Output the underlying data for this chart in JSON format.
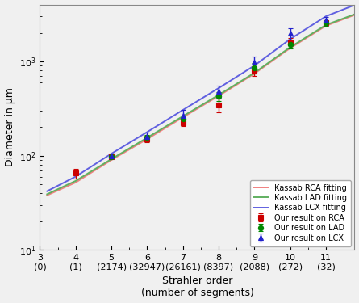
{
  "title": "",
  "xlabel": "Strahler order\n(number of segments)",
  "ylabel": "Diameter in μm",
  "xlim": [
    3.2,
    11.8
  ],
  "ylim": [
    10,
    4000
  ],
  "xtick_positions": [
    3,
    4,
    5,
    6,
    7,
    8,
    9,
    10,
    11
  ],
  "xtick_labels_top": [
    "3",
    "4",
    "5",
    "6",
    "7",
    "8",
    "9",
    "10",
    "11"
  ],
  "xtick_labels_bot": [
    "(0)",
    "(1)",
    "(2174)",
    "(32947)",
    "(26161)",
    "(8397)",
    "(2088)",
    "(272)",
    "(32)"
  ],
  "kassab_x": [
    3.2,
    4,
    5,
    6,
    7,
    8,
    9,
    10,
    11,
    11.8
  ],
  "kassab_rca_y": [
    38,
    52,
    90,
    150,
    255,
    430,
    740,
    1380,
    2380,
    3100
  ],
  "kassab_lad_y": [
    39,
    54,
    92,
    155,
    262,
    440,
    755,
    1410,
    2430,
    3150
  ],
  "kassab_lcx_y": [
    42,
    60,
    105,
    178,
    305,
    520,
    900,
    1720,
    3000,
    3950
  ],
  "rca_x": [
    4,
    5,
    6,
    7,
    8,
    9,
    10,
    11
  ],
  "rca_y": [
    65,
    97,
    150,
    225,
    345,
    790,
    1580,
    2550
  ],
  "rca_yerr_lo": [
    8,
    4,
    12,
    18,
    55,
    90,
    180,
    180
  ],
  "rca_yerr_hi": [
    8,
    4,
    12,
    18,
    55,
    90,
    180,
    180
  ],
  "lad_x": [
    5,
    6,
    7,
    8,
    9,
    10,
    11
  ],
  "lad_y": [
    97,
    155,
    248,
    425,
    855,
    1520,
    2560
  ],
  "lad_yerr_lo": [
    4,
    12,
    18,
    45,
    110,
    140,
    180
  ],
  "lad_yerr_hi": [
    4,
    12,
    18,
    45,
    110,
    140,
    180
  ],
  "lcx_x": [
    5,
    6,
    7,
    8,
    9,
    10,
    11
  ],
  "lcx_y": [
    100,
    160,
    268,
    480,
    980,
    1980,
    2720
  ],
  "lcx_yerr_lo": [
    6,
    15,
    35,
    70,
    140,
    280,
    230
  ],
  "lcx_yerr_hi": [
    6,
    15,
    35,
    70,
    140,
    280,
    230
  ],
  "color_rca_line": "#f08080",
  "color_lad_line": "#60b060",
  "color_lcx_line": "#6060e0",
  "color_rca_data": "#cc0000",
  "color_lad_data": "#008800",
  "color_lcx_data": "#2222cc",
  "bg_color": "#f0f0f0",
  "legend_loc": "lower right",
  "figsize": [
    4.45,
    3.75
  ],
  "dpi": 100
}
